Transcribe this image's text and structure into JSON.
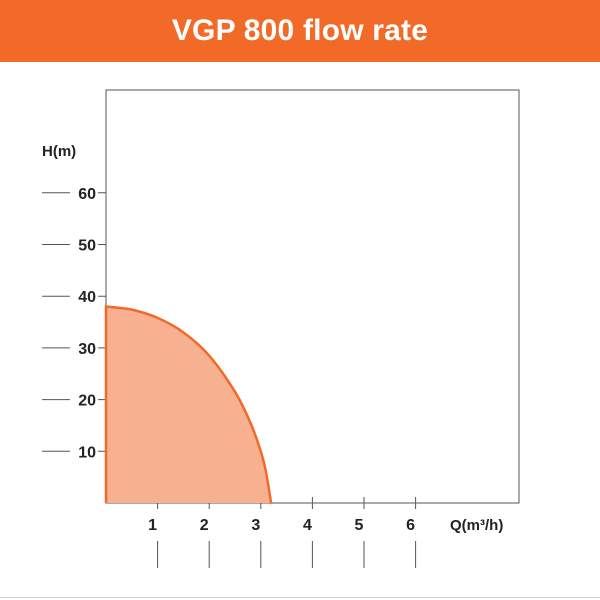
{
  "colors": {
    "accent": "#f26a28",
    "curve": "#f26a28",
    "fill": "#f7b090",
    "axis": "#555555"
  },
  "chart_data": {
    "type": "area",
    "title": "VGP 800 flow rate",
    "xlabel": "Q(m³/h)",
    "ylabel": "H(m)",
    "xlim": [
      0,
      8
    ],
    "ylim": [
      0,
      80
    ],
    "x_ticks": [
      1,
      2,
      3,
      4,
      5,
      6
    ],
    "y_ticks": [
      10,
      20,
      30,
      40,
      50,
      60
    ],
    "grid": false,
    "series": [
      {
        "x": [
          0,
          0.5,
          1.0,
          1.5,
          2.0,
          2.5,
          2.8,
          3.0,
          3.1,
          3.2
        ],
        "values": [
          38,
          37.4,
          35.8,
          33,
          28.5,
          21.5,
          15.5,
          10,
          6,
          0
        ]
      }
    ]
  }
}
